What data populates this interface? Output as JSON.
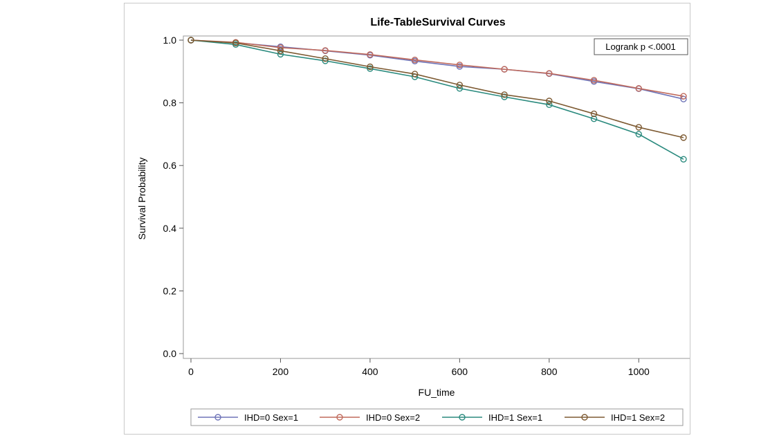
{
  "chart_data": {
    "type": "line",
    "title": "Life-TableSurvival Curves",
    "xlabel": "FU_time",
    "ylabel": "Survival Probability",
    "annotation": "Logrank p <.0001",
    "xlim": [
      0,
      1100
    ],
    "ylim": [
      0,
      1
    ],
    "xticks": [
      0,
      200,
      400,
      600,
      800,
      1000
    ],
    "yticks": [
      0.0,
      0.2,
      0.4,
      0.6,
      0.8,
      1.0
    ],
    "ytick_labels": [
      "0.0",
      "0.2",
      "0.4",
      "0.6",
      "0.8",
      "1.0"
    ],
    "grid": false,
    "legend_position": "bottom",
    "x": [
      0,
      100,
      200,
      300,
      400,
      500,
      600,
      700,
      800,
      900,
      1000,
      1100
    ],
    "series": [
      {
        "name": "IHD=0 Sex=1",
        "color": "#6e74b8",
        "values": [
          1.0,
          0.992,
          0.979,
          0.966,
          0.952,
          0.933,
          0.916,
          0.907,
          0.893,
          0.868,
          0.845,
          0.812
        ]
      },
      {
        "name": "IHD=0 Sex=2",
        "color": "#c06a5c",
        "values": [
          1.0,
          0.993,
          0.976,
          0.967,
          0.954,
          0.937,
          0.921,
          0.907,
          0.894,
          0.872,
          0.846,
          0.821
        ]
      },
      {
        "name": "IHD=1 Sex=1",
        "color": "#2a8a7e",
        "values": [
          1.0,
          0.986,
          0.955,
          0.934,
          0.909,
          0.883,
          0.846,
          0.819,
          0.794,
          0.749,
          0.7,
          0.62
        ]
      },
      {
        "name": "IHD=1 Sex=2",
        "color": "#7d5a32",
        "values": [
          1.0,
          0.991,
          0.966,
          0.941,
          0.915,
          0.892,
          0.857,
          0.826,
          0.806,
          0.765,
          0.722,
          0.689
        ]
      }
    ]
  }
}
